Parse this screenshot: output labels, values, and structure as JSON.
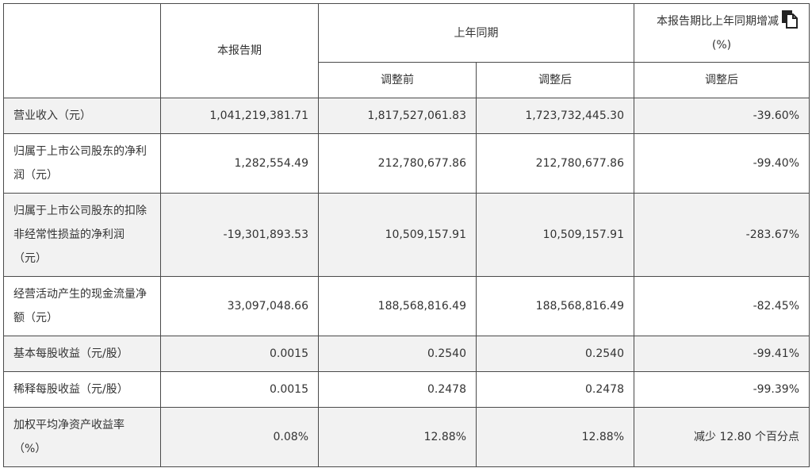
{
  "header": {
    "current_period": "本报告期",
    "prior_period": "上年同期",
    "change_title": "本报告期比上年同期增减",
    "change_unit": "(%)",
    "before_adjust": "调整前",
    "after_adjust": "调整后",
    "change_after_adjust": "调整后"
  },
  "rows": [
    {
      "label": "营业收入（元）",
      "current": "1,041,219,381.71",
      "before": "1,817,527,061.83",
      "after": "1,723,732,445.30",
      "change": "-39.60%"
    },
    {
      "label": "归属于上市公司股东的净利润（元）",
      "current": "1,282,554.49",
      "before": "212,780,677.86",
      "after": "212,780,677.86",
      "change": "-99.40%"
    },
    {
      "label": "归属于上市公司股东的扣除非经常性损益的净利润（元）",
      "current": "-19,301,893.53",
      "before": "10,509,157.91",
      "after": "10,509,157.91",
      "change": "-283.67%"
    },
    {
      "label": "经营活动产生的现金流量净额（元）",
      "current": "33,097,048.66",
      "before": "188,568,816.49",
      "after": "188,568,816.49",
      "change": "-82.45%"
    },
    {
      "label": "基本每股收益（元/股）",
      "current": "0.0015",
      "before": "0.2540",
      "after": "0.2540",
      "change": "-99.41%"
    },
    {
      "label": "稀释每股收益（元/股）",
      "current": "0.0015",
      "before": "0.2478",
      "after": "0.2478",
      "change": "-99.39%"
    },
    {
      "label": "加权平均净资产收益率（%）",
      "current": "0.08%",
      "before": "12.88%",
      "after": "12.88%",
      "change": "减少 12.80 个百分点"
    }
  ]
}
